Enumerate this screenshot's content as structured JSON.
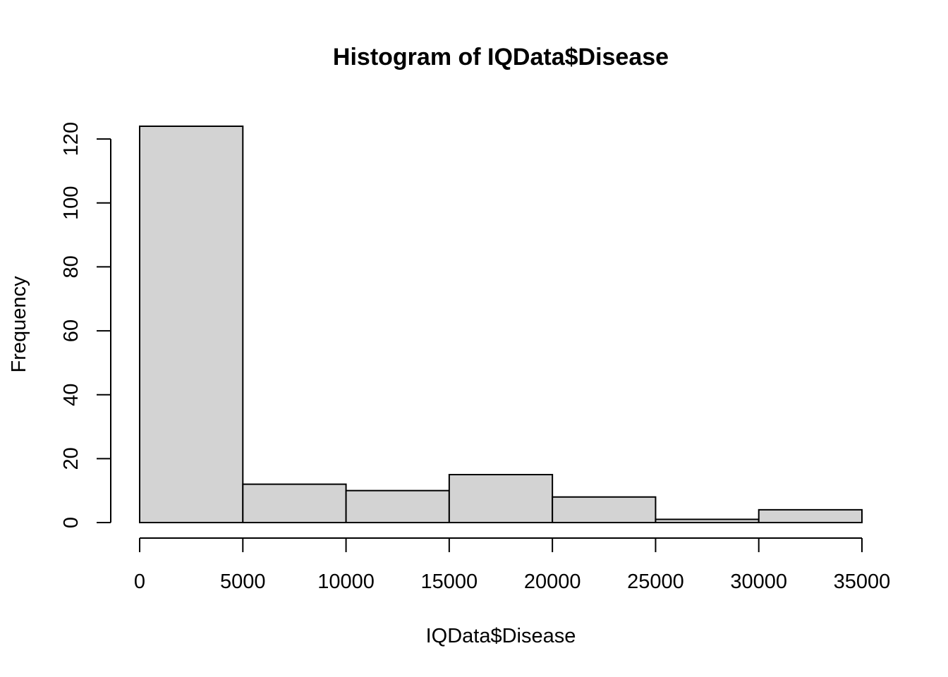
{
  "chart_data": {
    "type": "bar",
    "title": "Histogram of IQData$Disease",
    "xlabel": "IQData$Disease",
    "ylabel": "Frequency",
    "bin_edges": [
      0,
      5000,
      10000,
      15000,
      20000,
      25000,
      30000,
      35000
    ],
    "values": [
      124,
      12,
      10,
      15,
      8,
      1,
      4
    ],
    "x_ticks": [
      0,
      5000,
      10000,
      15000,
      20000,
      25000,
      30000,
      35000
    ],
    "y_ticks": [
      0,
      20,
      40,
      60,
      80,
      100,
      120
    ],
    "xlim": [
      0,
      35000
    ],
    "ylim": [
      0,
      124
    ],
    "grid": false,
    "bar_color": "#d3d3d3"
  }
}
